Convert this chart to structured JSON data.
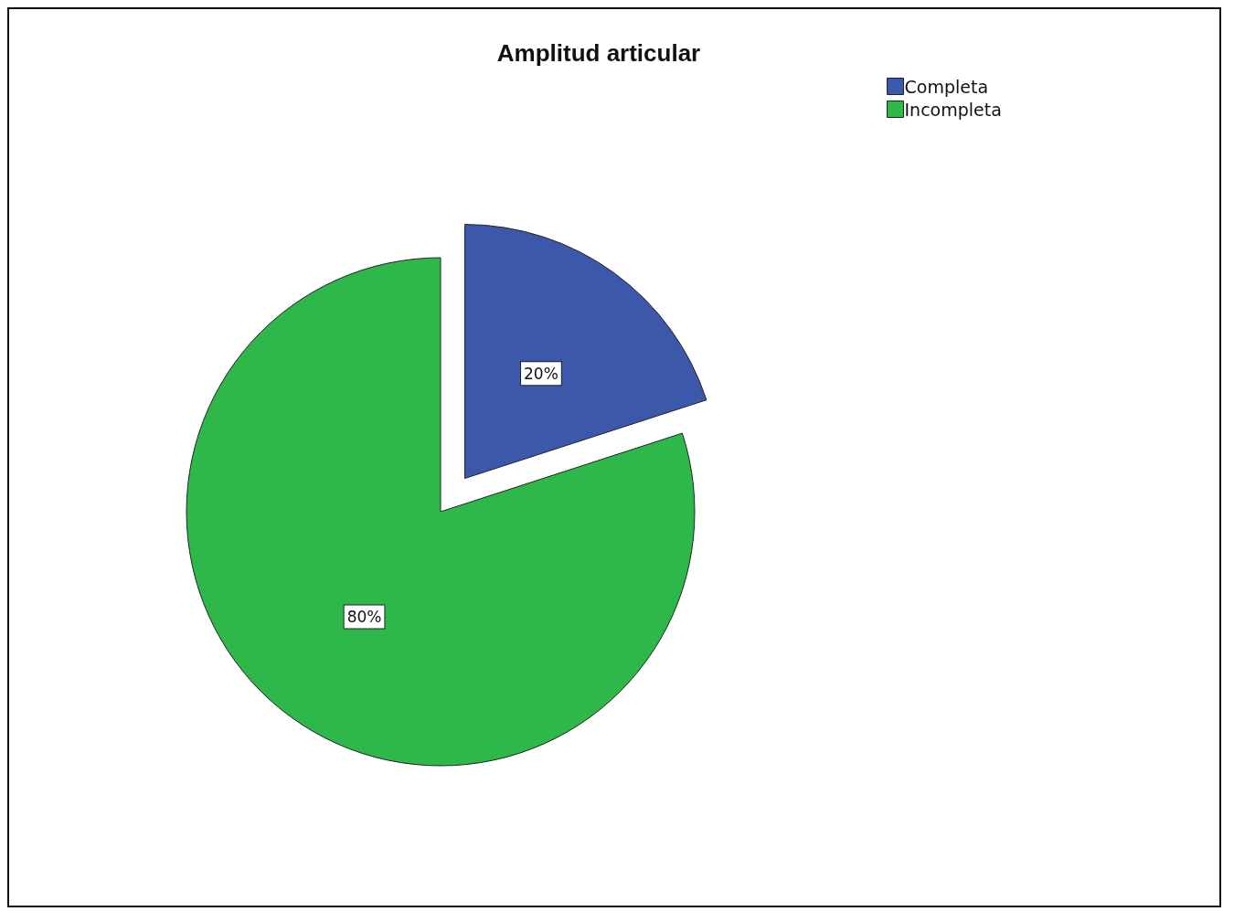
{
  "chart_data": {
    "type": "pie",
    "title": "Amplitud articular",
    "categories": [
      "Completa",
      "Incompleta"
    ],
    "values": [
      20,
      80
    ],
    "colors": [
      "#3c58aa",
      "#2fb84a"
    ],
    "value_labels": [
      "20%",
      "80%"
    ],
    "legend": "top right"
  }
}
